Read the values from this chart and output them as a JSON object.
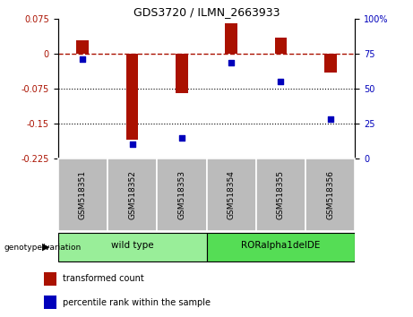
{
  "title": "GDS3720 / ILMN_2663933",
  "categories": [
    "GSM518351",
    "GSM518352",
    "GSM518353",
    "GSM518354",
    "GSM518355",
    "GSM518356"
  ],
  "bar_values": [
    0.03,
    -0.185,
    -0.085,
    0.065,
    0.035,
    -0.04
  ],
  "percentile_values": [
    71,
    10,
    15,
    69,
    55,
    28
  ],
  "ylim_left": [
    -0.225,
    0.075
  ],
  "ylim_right": [
    0,
    100
  ],
  "yticks_left": [
    0.075,
    0,
    -0.075,
    -0.15,
    -0.225
  ],
  "yticks_right": [
    100,
    75,
    50,
    25,
    0
  ],
  "bar_color": "#aa1100",
  "point_color": "#0000bb",
  "dotted_hlines": [
    -0.075,
    -0.15
  ],
  "group1_label": "wild type",
  "group2_label": "RORalpha1delDE",
  "group1_indices": [
    0,
    1,
    2
  ],
  "group2_indices": [
    3,
    4,
    5
  ],
  "group1_color": "#99ee99",
  "group2_color": "#55dd55",
  "genotype_label": "genotype/variation",
  "legend_bar_label": "transformed count",
  "legend_point_label": "percentile rank within the sample",
  "bar_width": 0.25,
  "background_color": "#ffffff",
  "tick_area_color": "#bbbbbb"
}
